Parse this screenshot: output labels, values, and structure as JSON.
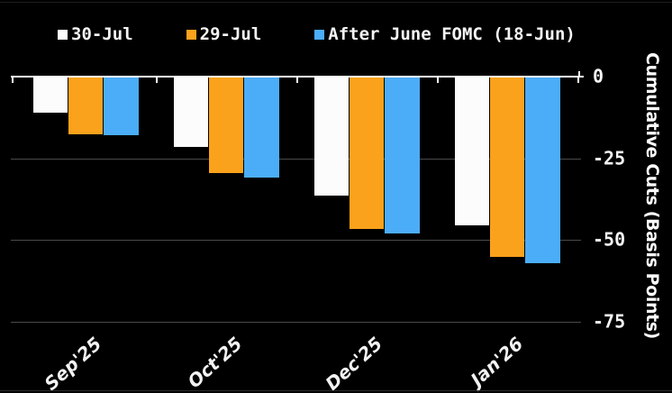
{
  "chart_data": {
    "type": "bar",
    "orientation": "vertical-negative",
    "categories": [
      "Sep'25",
      "Oct'25",
      "Dec'25",
      "Jan'26"
    ],
    "series": [
      {
        "name": "30-Jul",
        "color": "#fcfcfc",
        "values": [
          -11,
          -21.5,
          -36.5,
          -45.5
        ]
      },
      {
        "name": "29-Jul",
        "color": "#faa21b",
        "values": [
          -17.5,
          -29.5,
          -46.5,
          -55
        ]
      },
      {
        "name": "After June FOMC (18-Jun)",
        "color": "#4badf8",
        "values": [
          -18,
          -31,
          -48,
          -57
        ]
      }
    ],
    "title": "",
    "xlabel": "",
    "ylabel": "Cumulative Cuts (Basis Points)",
    "ylim": [
      -75,
      0
    ],
    "yticks": [
      0,
      -25,
      -50,
      -75
    ],
    "ytick_labels": [
      "0",
      "-25",
      "-50",
      "-75"
    ],
    "legend_position": "top",
    "grid": true,
    "colors": {
      "background": "#000000",
      "axis": "#ffffff",
      "gridline": "#4a4a4a",
      "text": "#f4f4f4"
    }
  }
}
